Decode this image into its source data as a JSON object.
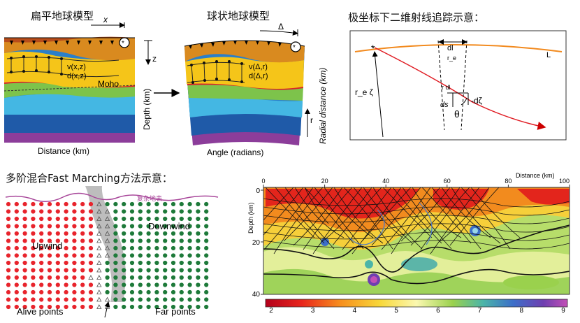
{
  "panel_flat": {
    "title": "扁平地球模型",
    "x_label": "x",
    "z_label": "z",
    "v_label": "v(x,z)",
    "d_label": "d(x,z)",
    "moho_label": "Moho",
    "depth_label": "Depth (km)",
    "distance_label": "Distance (km)"
  },
  "panel_sphere": {
    "title": "球状地球模型",
    "delta_label": "Δ",
    "r_label": "r",
    "v_label": "v(Δ,r)",
    "d_label": "d(Δ,r)",
    "radial_label": "Radial distance (km)",
    "angle_label": "Angle (radians)"
  },
  "panel_polar": {
    "title": "极坐标下二维射线追踪示意：",
    "dl_label": "dl",
    "re_label": "r_e",
    "L_label": "L",
    "rdl_label": "r dl",
    "dzeta_label": "-dζ",
    "ds_label": "ds",
    "theta_label": "θ",
    "rzeta_label": "r_e ζ"
  },
  "panel_fmm": {
    "title": "多阶混合Fast Marching方法示意：",
    "upwind_label": "Upwind",
    "downwind_label": "Downwind",
    "alive_label": "Alive points",
    "far_label": "Far points",
    "surface_label": "复杂地表",
    "colors": {
      "alive": "#e8242c",
      "far": "#1e7a3a",
      "band": "#bdbdbd"
    }
  },
  "panel_tomo": {
    "depth_label": "Depth (km)",
    "distance_label": "Distance (km)",
    "x_ticks": [
      "0",
      "20",
      "40",
      "60",
      "80",
      "100"
    ],
    "y_ticks": [
      "0",
      "20",
      "40"
    ],
    "colorbar_ticks": [
      "2",
      "3",
      "4",
      "5",
      "6",
      "7",
      "8",
      "9"
    ]
  }
}
